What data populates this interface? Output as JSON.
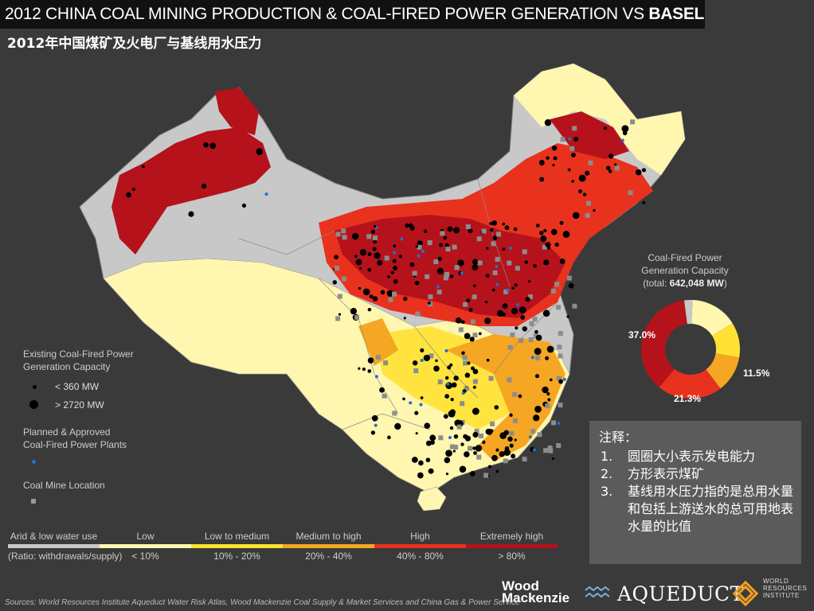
{
  "title": {
    "prefix": "2012 CHINA COAL MINING PRODUCTION & COAL-FIRED POWER GENERATION VS",
    "emphasis": "BASELINE WATER STRESS"
  },
  "subtitle": "2012年中国煤矿及火电厂与基线用水压力",
  "legend": {
    "capacity_title_1": "Existing Coal-Fired Power",
    "capacity_title_2": "Generation Capacity",
    "small_label": "< 360 MW",
    "large_label": "> 2720 MW",
    "planned_title_1": "Planned & Approved",
    "planned_title_2": "Coal-Fired Power Plants",
    "mine_title": "Coal Mine Location"
  },
  "water_stress_scale": {
    "ratio_label": "(Ratio: withdrawals/supply)",
    "categories": [
      {
        "name": "Arid & low water use",
        "range": "",
        "color": "#c8c8c8"
      },
      {
        "name": "Low",
        "range": "< 10%",
        "color": "#fff6b0"
      },
      {
        "name": "Low to medium",
        "range": "10% - 20%",
        "color": "#ffe233"
      },
      {
        "name": "Medium to high",
        "range": "20% - 40%",
        "color": "#f5a623"
      },
      {
        "name": "High",
        "range": "40% - 80%",
        "color": "#e8321e"
      },
      {
        "name": "Extremely high",
        "range": "> 80%",
        "color": "#b5121b"
      }
    ]
  },
  "pie": {
    "title_1": "Coal-Fired Power",
    "title_2": "Generation Capacity",
    "total_prefix": "(total: ",
    "total_value": "642,048 MW",
    "total_suffix": ")",
    "labels": {
      "extreme": "37.0%",
      "lowmed": "11.5%",
      "high": "21.3%"
    }
  },
  "chart_data": {
    "type": "pie",
    "donut": true,
    "title": "Coal-Fired Power Generation Capacity",
    "total_mw": 642048,
    "slices": [
      {
        "name": "Low",
        "value": 15.5,
        "color": "#fff6b0"
      },
      {
        "name": "Low to medium",
        "value": 11.5,
        "color": "#ffe233"
      },
      {
        "name": "Medium to high",
        "value": 12.0,
        "color": "#f5a623"
      },
      {
        "name": "High",
        "value": 21.3,
        "color": "#e8321e"
      },
      {
        "name": "Extremely high",
        "value": 37.0,
        "color": "#b5121b"
      },
      {
        "name": "Arid & low water use",
        "value": 2.7,
        "color": "#c8c8c8"
      }
    ]
  },
  "notes": {
    "heading": "注释：",
    "items": [
      {
        "n": "1.",
        "text": "圆圈大小表示发电能力"
      },
      {
        "n": "2.",
        "text": "方形表示煤矿"
      },
      {
        "n": "3.",
        "text": "基线用水压力指的是总用水量和包括上游送水的总可用地表水量的比值"
      }
    ]
  },
  "sources": "Sources: World Resources Institute Aqueduct Water Risk Atlas, Wood Mackenzie Coal Supply & Market Services and China Gas & Power Service",
  "logos": {
    "wm_1": "Wood",
    "wm_2": "Mackenzie",
    "aqueduct": "AQUEDUCT",
    "wri_1": "WORLD",
    "wri_2": "RESOURCES",
    "wri_3": "INSTITUTE"
  }
}
